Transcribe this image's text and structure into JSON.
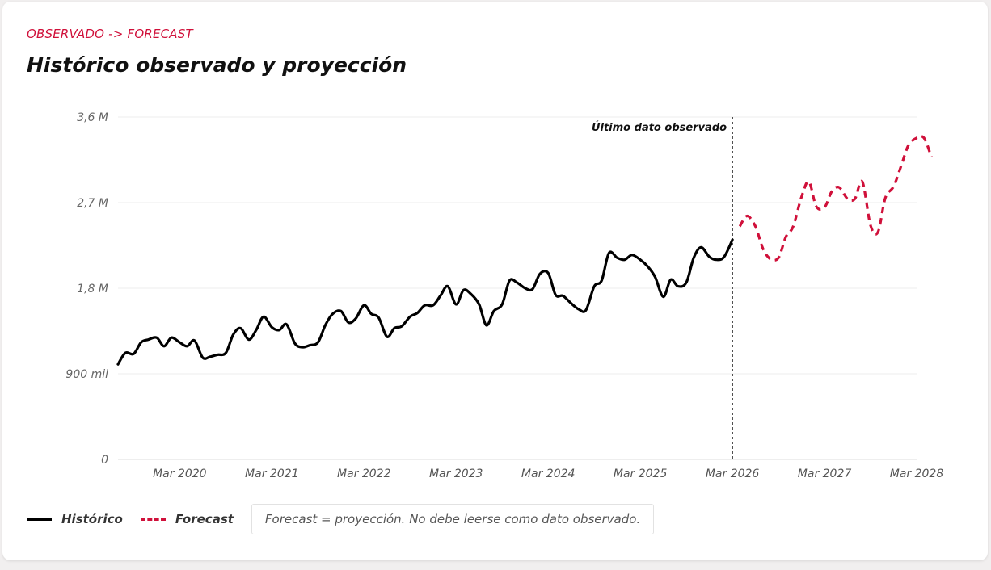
{
  "header": {
    "eyebrow": "OBSERVADO -> FORECAST",
    "title": "Histórico observado y proyección"
  },
  "annotation": {
    "label": "Último dato observado",
    "x": 2026.17
  },
  "legend": {
    "items": [
      {
        "label": "Histórico",
        "color": "#000000",
        "style": "solid"
      },
      {
        "label": "Forecast",
        "color": "#d0103a",
        "style": "dashed"
      }
    ],
    "note": "Forecast = proyección. No debe leerse como dato observado."
  },
  "chart_data": {
    "type": "line",
    "title": "Histórico observado y proyección",
    "xlabel": "",
    "ylabel": "",
    "ylim": [
      0,
      3600000
    ],
    "xlim": [
      2019.5,
      2028.17
    ],
    "yticks": [
      {
        "value": 0,
        "label": "0"
      },
      {
        "value": 900000,
        "label": "900 mil"
      },
      {
        "value": 1800000,
        "label": "1,8 M"
      },
      {
        "value": 2700000,
        "label": "2,7 M"
      },
      {
        "value": 3600000,
        "label": "3,6 M"
      }
    ],
    "xticks": [
      {
        "value": 2020.17,
        "label": "Mar 2020"
      },
      {
        "value": 2021.17,
        "label": "Mar 2021"
      },
      {
        "value": 2022.17,
        "label": "Mar 2022"
      },
      {
        "value": 2023.17,
        "label": "Mar 2023"
      },
      {
        "value": 2024.17,
        "label": "Mar 2024"
      },
      {
        "value": 2025.17,
        "label": "Mar 2025"
      },
      {
        "value": 2026.17,
        "label": "Mar 2026"
      },
      {
        "value": 2027.17,
        "label": "Mar 2027"
      },
      {
        "value": 2028.17,
        "label": "Mar 2028"
      }
    ],
    "grid": true,
    "legend_position": "bottom-left",
    "series": [
      {
        "name": "Histórico",
        "color": "#000000",
        "style": "solid",
        "points": [
          [
            2019.5,
            1000000
          ],
          [
            2019.58,
            1120000
          ],
          [
            2019.67,
            1110000
          ],
          [
            2019.75,
            1230000
          ],
          [
            2019.83,
            1260000
          ],
          [
            2019.92,
            1280000
          ],
          [
            2020.0,
            1190000
          ],
          [
            2020.08,
            1280000
          ],
          [
            2020.17,
            1230000
          ],
          [
            2020.25,
            1190000
          ],
          [
            2020.33,
            1250000
          ],
          [
            2020.42,
            1070000
          ],
          [
            2020.5,
            1080000
          ],
          [
            2020.58,
            1100000
          ],
          [
            2020.67,
            1120000
          ],
          [
            2020.75,
            1310000
          ],
          [
            2020.83,
            1380000
          ],
          [
            2020.92,
            1260000
          ],
          [
            2021.0,
            1360000
          ],
          [
            2021.08,
            1500000
          ],
          [
            2021.17,
            1390000
          ],
          [
            2021.25,
            1360000
          ],
          [
            2021.33,
            1420000
          ],
          [
            2021.42,
            1220000
          ],
          [
            2021.5,
            1180000
          ],
          [
            2021.58,
            1200000
          ],
          [
            2021.67,
            1230000
          ],
          [
            2021.75,
            1410000
          ],
          [
            2021.83,
            1530000
          ],
          [
            2021.92,
            1560000
          ],
          [
            2022.0,
            1440000
          ],
          [
            2022.08,
            1480000
          ],
          [
            2022.17,
            1620000
          ],
          [
            2022.25,
            1530000
          ],
          [
            2022.33,
            1490000
          ],
          [
            2022.42,
            1290000
          ],
          [
            2022.5,
            1380000
          ],
          [
            2022.58,
            1400000
          ],
          [
            2022.67,
            1500000
          ],
          [
            2022.75,
            1540000
          ],
          [
            2022.83,
            1620000
          ],
          [
            2022.92,
            1620000
          ],
          [
            2023.0,
            1720000
          ],
          [
            2023.08,
            1820000
          ],
          [
            2023.17,
            1630000
          ],
          [
            2023.25,
            1780000
          ],
          [
            2023.33,
            1740000
          ],
          [
            2023.42,
            1630000
          ],
          [
            2023.5,
            1410000
          ],
          [
            2023.58,
            1560000
          ],
          [
            2023.67,
            1630000
          ],
          [
            2023.75,
            1880000
          ],
          [
            2023.83,
            1860000
          ],
          [
            2023.92,
            1800000
          ],
          [
            2024.0,
            1790000
          ],
          [
            2024.08,
            1950000
          ],
          [
            2024.17,
            1960000
          ],
          [
            2024.25,
            1730000
          ],
          [
            2024.33,
            1720000
          ],
          [
            2024.42,
            1640000
          ],
          [
            2024.5,
            1580000
          ],
          [
            2024.58,
            1570000
          ],
          [
            2024.67,
            1820000
          ],
          [
            2024.75,
            1880000
          ],
          [
            2024.83,
            2170000
          ],
          [
            2024.92,
            2120000
          ],
          [
            2025.0,
            2100000
          ],
          [
            2025.08,
            2150000
          ],
          [
            2025.17,
            2100000
          ],
          [
            2025.25,
            2030000
          ],
          [
            2025.33,
            1920000
          ],
          [
            2025.42,
            1710000
          ],
          [
            2025.5,
            1890000
          ],
          [
            2025.58,
            1820000
          ],
          [
            2025.67,
            1860000
          ],
          [
            2025.75,
            2120000
          ],
          [
            2025.83,
            2230000
          ],
          [
            2025.92,
            2130000
          ],
          [
            2026.0,
            2100000
          ],
          [
            2026.08,
            2130000
          ],
          [
            2026.17,
            2310000
          ]
        ]
      },
      {
        "name": "Forecast",
        "color": "#d0103a",
        "style": "dashed",
        "points": [
          [
            2026.25,
            2450000
          ],
          [
            2026.33,
            2560000
          ],
          [
            2026.42,
            2450000
          ],
          [
            2026.5,
            2220000
          ],
          [
            2026.58,
            2110000
          ],
          [
            2026.67,
            2120000
          ],
          [
            2026.75,
            2340000
          ],
          [
            2026.83,
            2450000
          ],
          [
            2026.92,
            2760000
          ],
          [
            2027.0,
            2920000
          ],
          [
            2027.08,
            2660000
          ],
          [
            2027.17,
            2650000
          ],
          [
            2027.25,
            2820000
          ],
          [
            2027.33,
            2860000
          ],
          [
            2027.42,
            2740000
          ],
          [
            2027.5,
            2740000
          ],
          [
            2027.58,
            2920000
          ],
          [
            2027.67,
            2460000
          ],
          [
            2027.75,
            2390000
          ],
          [
            2027.83,
            2750000
          ],
          [
            2027.92,
            2870000
          ],
          [
            2028.0,
            3080000
          ],
          [
            2028.08,
            3300000
          ],
          [
            2028.17,
            3380000
          ],
          [
            2028.25,
            3380000
          ],
          [
            2028.33,
            3180000
          ]
        ]
      }
    ]
  }
}
